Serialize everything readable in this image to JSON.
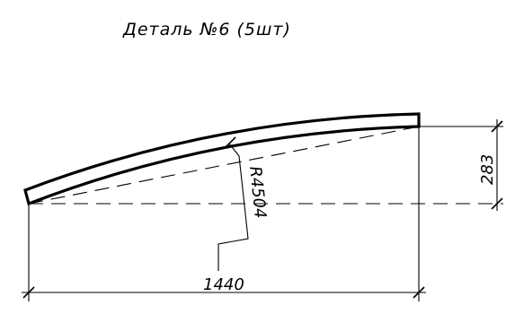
{
  "title": "Деталь №6 (5шт)",
  "dimensions": {
    "radius": "R4504",
    "width": "1440",
    "height": "283"
  }
}
